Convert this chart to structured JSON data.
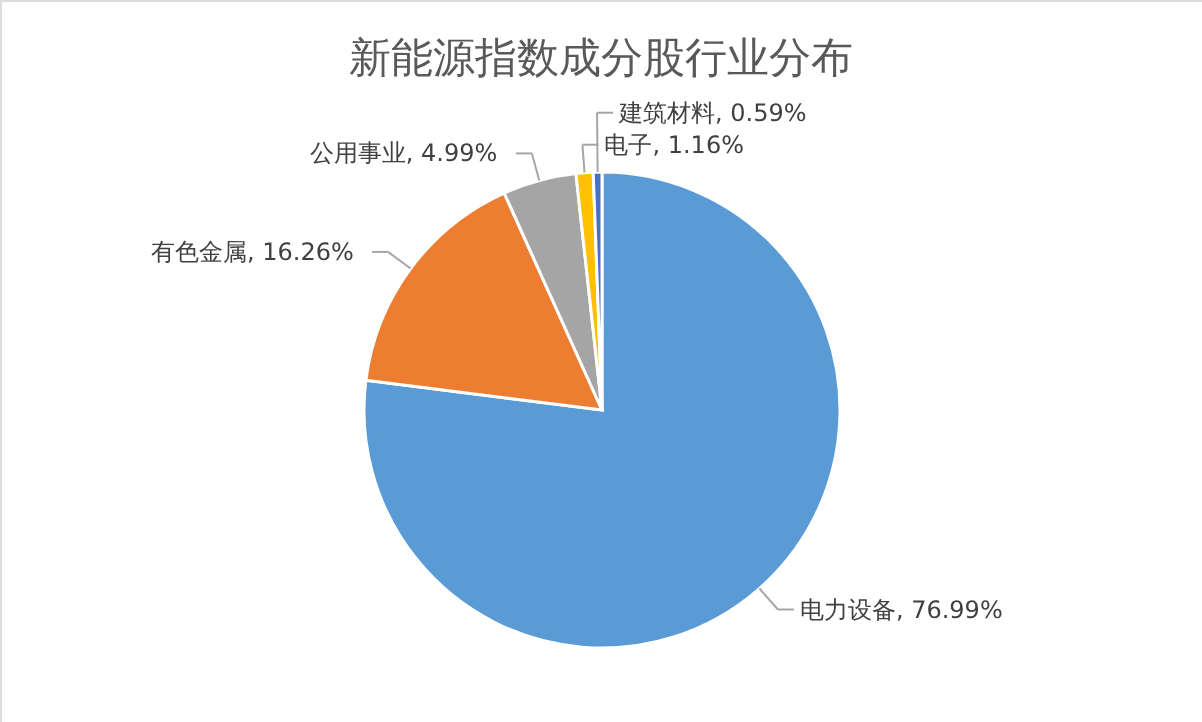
{
  "chart_data": {
    "type": "pie",
    "title": "新能源指数成分股行业分布",
    "categories": [
      "电力设备",
      "有色金属",
      "公用事业",
      "电子",
      "建筑材料"
    ],
    "values": [
      76.99,
      16.26,
      4.99,
      1.16,
      0.59
    ],
    "colors": [
      "#5b9bd5",
      "#ed7d31",
      "#a5a5a5",
      "#ffc000",
      "#4472c4"
    ],
    "value_labels": [
      ", 76.99%",
      ", 16.26%",
      ", 4.99%",
      ", 1.16%",
      ", 0.59%"
    ]
  }
}
